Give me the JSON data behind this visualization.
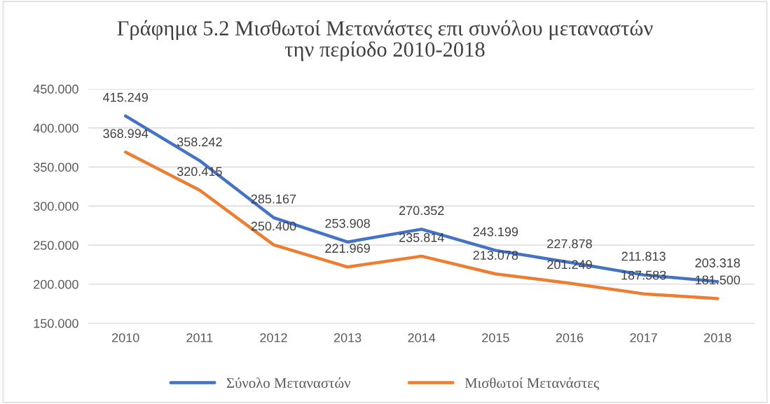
{
  "chart_data": {
    "type": "line",
    "title": "Γράφημα 5.2 Μισθωτοί Μετανάστες επι συνόλου μεταναστών\nτην περίοδο 2010-2018",
    "categories": [
      "2010",
      "2011",
      "2012",
      "2013",
      "2014",
      "2015",
      "2016",
      "2017",
      "2018"
    ],
    "series": [
      {
        "name": "Σύνολο Μεταναστών",
        "color": "#4472c4",
        "values": [
          415.249,
          358.242,
          285.167,
          253.908,
          270.352,
          243.199,
          227.878,
          211.813,
          203.318
        ],
        "value_labels": [
          "415.249",
          "358.242",
          "285.167",
          "253.908",
          "270.352",
          "243.199",
          "227.878",
          "211.813",
          "203.318"
        ]
      },
      {
        "name": "Μισθωτοί Μετανάστες",
        "color": "#ed7d31",
        "values": [
          368.994,
          320.415,
          250.4,
          221.969,
          235.814,
          213.078,
          201.249,
          187.583,
          181.5
        ],
        "value_labels": [
          "368.994",
          "320.415",
          "250.400",
          "221.969",
          "235.814",
          "213.078",
          "201.249",
          "187.583",
          "181.500"
        ]
      }
    ],
    "ylim": [
      150,
      450
    ],
    "yticks": [
      {
        "value": 150,
        "label": "150.000"
      },
      {
        "value": 200,
        "label": "200.000"
      },
      {
        "value": 250,
        "label": "250.000"
      },
      {
        "value": 300,
        "label": "300.000"
      },
      {
        "value": 350,
        "label": "350.000"
      },
      {
        "value": 400,
        "label": "400.000"
      },
      {
        "value": 450,
        "label": "450.000"
      }
    ],
    "grid": "y",
    "legend": "bottom",
    "marker": "none",
    "line_style": "solid"
  }
}
